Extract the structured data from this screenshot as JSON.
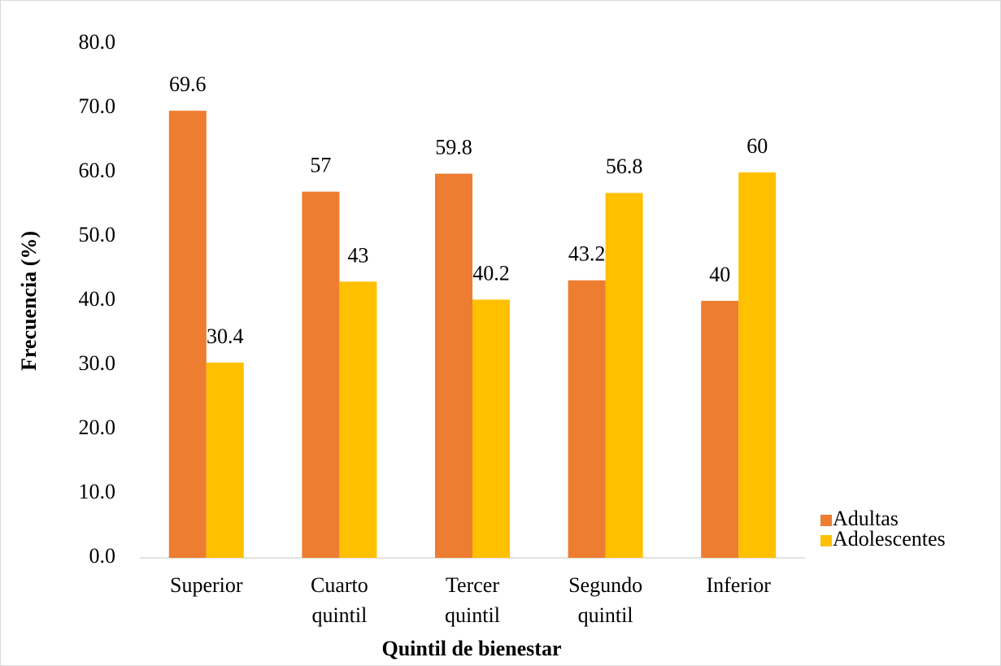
{
  "chart_data": {
    "type": "bar",
    "xlabel": "Quintil de bienestar",
    "ylabel": "Frecuencia (%)",
    "categories": [
      "Superior",
      "Cuarto quintil",
      "Tercer quintil",
      "Segundo quintil",
      "Inferior"
    ],
    "series": [
      {
        "name": "Adultas",
        "color": "#ed7d31",
        "values": [
          69.6,
          57,
          59.8,
          43.2,
          40
        ]
      },
      {
        "name": "Adolescentes",
        "color": "#ffc000",
        "values": [
          30.4,
          43,
          40.2,
          56.8,
          60
        ]
      }
    ],
    "ylim": [
      0,
      80
    ],
    "yticks": [
      {
        "value": 0,
        "label": "0.0"
      },
      {
        "value": 10,
        "label": "10.0"
      },
      {
        "value": 20,
        "label": "20.0"
      },
      {
        "value": 30,
        "label": "30.0"
      },
      {
        "value": 40,
        "label": "40.0"
      },
      {
        "value": 50,
        "label": "50.0"
      },
      {
        "value": 60,
        "label": "60.0"
      },
      {
        "value": 70,
        "label": "70.0"
      },
      {
        "value": 80,
        "label": "80.0"
      }
    ],
    "grid": false,
    "legend": "right"
  }
}
